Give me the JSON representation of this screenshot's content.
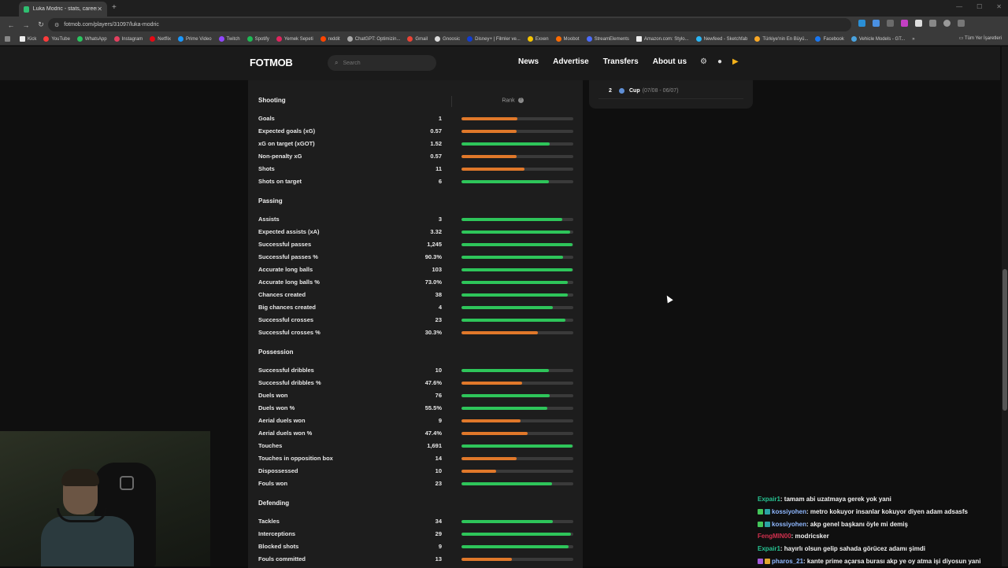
{
  "browser": {
    "tab_title": "Luka Modric - stats, career and",
    "url": "fotmob.com/players/31097/luka-modric",
    "bookmarks": [
      "Kick",
      "YouTube",
      "WhatsApp",
      "Instagram",
      "Netflix",
      "Prime Video",
      "Twitch",
      "Spotify",
      "Yemek Sepeti",
      "reddit",
      "ChatGPT: Optimizin...",
      "Gmail",
      "Gnoosic",
      "Disney+ | Filmler ve...",
      "Exxen",
      "Moobot",
      "StreamElements",
      "Amazon.com: Stylo...",
      "Newfeed - Sketchfab",
      "Türkiye'nin En Büyü...",
      "Facebook",
      "Vehicle Models - GT..."
    ],
    "bookmarks_overflow": "»",
    "all_bookmarks": "Tüm Yer İşaretleri"
  },
  "site": {
    "logo": "FOTMOB",
    "search_placeholder": "Search",
    "nav": [
      "News",
      "Advertise",
      "Transfers",
      "About us"
    ]
  },
  "side_panel": {
    "rows": [
      {
        "num": "2",
        "label": "Cup",
        "dates": "(07/08 - 06/07)"
      }
    ]
  },
  "stats": {
    "rank_header": "Rank",
    "sections": [
      {
        "title": "Shooting",
        "rows": [
          {
            "label": "Goals",
            "value": "1",
            "rank_pct": 50,
            "color": "orange"
          },
          {
            "label": "Expected goals (xG)",
            "value": "0.57",
            "rank_pct": 49,
            "color": "orange"
          },
          {
            "label": "xG on target (xGOT)",
            "value": "1.52",
            "rank_pct": 79,
            "color": "green"
          },
          {
            "label": "Non-penalty xG",
            "value": "0.57",
            "rank_pct": 49,
            "color": "orange"
          },
          {
            "label": "Shots",
            "value": "11",
            "rank_pct": 56,
            "color": "orange"
          },
          {
            "label": "Shots on target",
            "value": "6",
            "rank_pct": 78,
            "color": "green"
          }
        ]
      },
      {
        "title": "Passing",
        "rows": [
          {
            "label": "Assists",
            "value": "3",
            "rank_pct": 90,
            "color": "green"
          },
          {
            "label": "Expected assists (xA)",
            "value": "3.32",
            "rank_pct": 97,
            "color": "green"
          },
          {
            "label": "Successful passes",
            "value": "1,245",
            "rank_pct": 99,
            "color": "green"
          },
          {
            "label": "Successful passes %",
            "value": "90.3%",
            "rank_pct": 91,
            "color": "green"
          },
          {
            "label": "Accurate long balls",
            "value": "103",
            "rank_pct": 99,
            "color": "green"
          },
          {
            "label": "Accurate long balls %",
            "value": "73.0%",
            "rank_pct": 95,
            "color": "green"
          },
          {
            "label": "Chances created",
            "value": "38",
            "rank_pct": 95,
            "color": "green"
          },
          {
            "label": "Big chances created",
            "value": "4",
            "rank_pct": 82,
            "color": "green"
          },
          {
            "label": "Successful crosses",
            "value": "23",
            "rank_pct": 93,
            "color": "green"
          },
          {
            "label": "Successful crosses %",
            "value": "30.3%",
            "rank_pct": 68,
            "color": "orange"
          }
        ]
      },
      {
        "title": "Possession",
        "rows": [
          {
            "label": "Successful dribbles",
            "value": "10",
            "rank_pct": 78,
            "color": "green"
          },
          {
            "label": "Successful dribbles %",
            "value": "47.6%",
            "rank_pct": 54,
            "color": "orange"
          },
          {
            "label": "Duels won",
            "value": "76",
            "rank_pct": 79,
            "color": "green"
          },
          {
            "label": "Duels won %",
            "value": "55.5%",
            "rank_pct": 77,
            "color": "green"
          },
          {
            "label": "Aerial duels won",
            "value": "9",
            "rank_pct": 53,
            "color": "orange"
          },
          {
            "label": "Aerial duels won %",
            "value": "47.4%",
            "rank_pct": 59,
            "color": "orange"
          },
          {
            "label": "Touches",
            "value": "1,691",
            "rank_pct": 99,
            "color": "green"
          },
          {
            "label": "Touches in opposition box",
            "value": "14",
            "rank_pct": 49,
            "color": "orange"
          },
          {
            "label": "Dispossessed",
            "value": "10",
            "rank_pct": 31,
            "color": "orange"
          },
          {
            "label": "Fouls won",
            "value": "23",
            "rank_pct": 81,
            "color": "green"
          }
        ]
      },
      {
        "title": "Defending",
        "rows": [
          {
            "label": "Tackles",
            "value": "34",
            "rank_pct": 82,
            "color": "green"
          },
          {
            "label": "Interceptions",
            "value": "29",
            "rank_pct": 98,
            "color": "green"
          },
          {
            "label": "Blocked shots",
            "value": "9",
            "rank_pct": 96,
            "color": "green"
          },
          {
            "label": "Fouls committed",
            "value": "13",
            "rank_pct": 45,
            "color": "orange"
          }
        ]
      }
    ]
  },
  "chat": [
    {
      "user": "Expair1",
      "user_color": "#27c493",
      "badges": [],
      "text": ": tamam abi uzatmaya gerek yok yani"
    },
    {
      "user": "kossiyohen",
      "user_color": "#8fb8ff",
      "badges": [
        "#43c65a",
        "#2aa3a3"
      ],
      "text": ": metro kokuyor insanlar kokuyor diyen adam adsasfs"
    },
    {
      "user": "kossiyohen",
      "user_color": "#8fb8ff",
      "badges": [
        "#43c65a",
        "#2aa3a3"
      ],
      "text": ": akp genel başkanı öyle mi demiş"
    },
    {
      "user": "FengMIN00",
      "user_color": "#d2304e",
      "badges": [],
      "text": ": modricsker"
    },
    {
      "user": "Expair1",
      "user_color": "#27c493",
      "badges": [],
      "text": ": hayırlı olsun gelip sahada görücez adamı şimdi"
    },
    {
      "user": "pharos_21",
      "user_color": "#8fb8ff",
      "badges": [
        "#a25ad9",
        "#e0a82e"
      ],
      "text": ": kante prime açarsa burası akp ye oy atma işi diyosun yani"
    }
  ],
  "colors": {
    "green": "#2ec55a",
    "orange": "#e0782a",
    "track": "#3a3a3a"
  }
}
